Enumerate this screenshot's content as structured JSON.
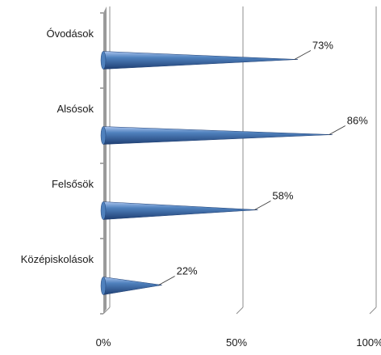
{
  "chart_data": {
    "type": "bar",
    "orientation": "horizontal",
    "style": "3d-cone",
    "categories": [
      "Óvodások",
      "Alsósok",
      "Felsősök",
      "Középiskolások"
    ],
    "values": [
      73,
      86,
      58,
      22
    ],
    "value_labels": [
      "73%",
      "86%",
      "58%",
      "22%"
    ],
    "xlim": [
      0,
      100
    ],
    "x_ticks": [
      "0%",
      "50%",
      "100%"
    ],
    "x_tick_values": [
      0,
      50,
      100
    ],
    "grid": "vertical",
    "legend": "none",
    "title": "",
    "xlabel": "",
    "ylabel": "",
    "colors": {
      "cone_light": "#a9c4ee",
      "cone_mid": "#4f81bd",
      "cone_dark": "#1f3f73",
      "gridline": "#8c8c8c",
      "floor": "#9a9a9a"
    }
  }
}
